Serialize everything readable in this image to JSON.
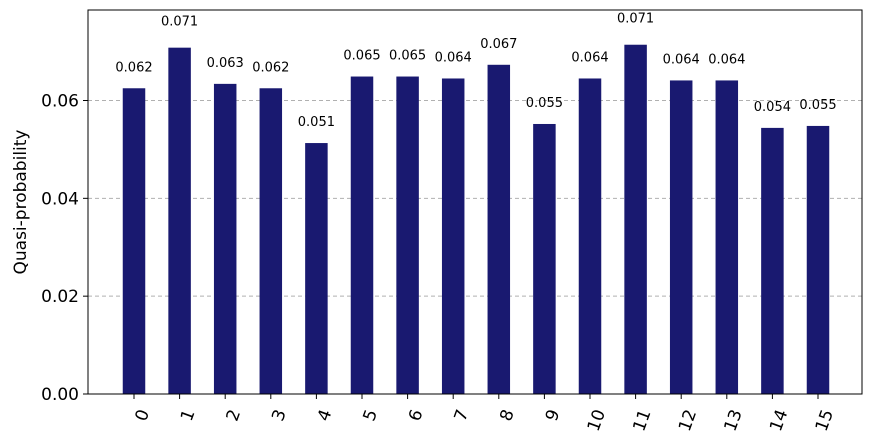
{
  "chart_data": {
    "type": "bar",
    "title": "",
    "xlabel": "",
    "ylabel": "Quasi-probability",
    "categories": [
      "0",
      "1",
      "2",
      "3",
      "4",
      "5",
      "6",
      "7",
      "8",
      "9",
      "10",
      "11",
      "12",
      "13",
      "14",
      "15"
    ],
    "values": [
      0.0625,
      0.0708,
      0.0634,
      0.0625,
      0.0513,
      0.0649,
      0.0649,
      0.0645,
      0.0673,
      0.0552,
      0.0645,
      0.0714,
      0.0641,
      0.0641,
      0.0544,
      0.0548
    ],
    "data_labels": [
      "0.062",
      "0.071",
      "0.063",
      "0.062",
      "0.051",
      "0.065",
      "0.065",
      "0.064",
      "0.067",
      "0.055",
      "0.064",
      "0.071",
      "0.064",
      "0.064",
      "0.054",
      "0.055"
    ],
    "ylim": [
      0,
      0.0785
    ],
    "yticks": [
      0.0,
      0.02,
      0.04,
      0.06
    ],
    "ytick_labels": [
      "0.00",
      "0.02",
      "0.04",
      "0.06"
    ],
    "grid": "horizontal dashed",
    "bar_color": "#191970",
    "grid_color": "#b0b0b0"
  }
}
